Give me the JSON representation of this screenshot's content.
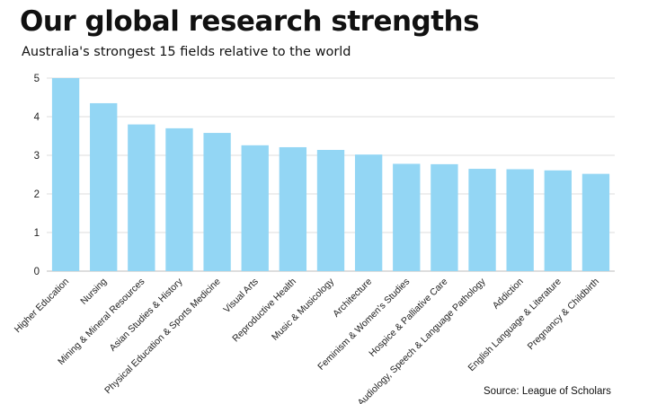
{
  "title": "Our global research strengths",
  "subtitle": "Australia's strongest 15 fields relative to the world",
  "source": "Source: League of Scholars",
  "colors": {
    "bar": "#93d6f4",
    "grid": "#dddddd",
    "axis": "#bbbbbb"
  },
  "chart_data": {
    "type": "bar",
    "title": "Our global research strengths",
    "subtitle": "Australia's strongest 15 fields relative to the world",
    "xlabel": "",
    "ylabel": "",
    "ylim": [
      0,
      5
    ],
    "yticks": [
      0,
      1,
      2,
      3,
      4,
      5
    ],
    "grid": true,
    "categories": [
      "Higher Education",
      "Nursing",
      "Mining & Mineral Resources",
      "Asian Studies & History",
      "Physical Education & Sports Medicine",
      "Visual Arts",
      "Reproductive Health",
      "Music & Musicology",
      "Architecture",
      "Feminism & Women's Studies",
      "Hospice & Palliative Care",
      "Audiology, Speech & Language Pathology",
      "Addiction",
      "English Language & Literature",
      "Pregnancy & Childbirth"
    ],
    "values": [
      5.0,
      4.35,
      3.8,
      3.7,
      3.58,
      3.26,
      3.21,
      3.14,
      3.02,
      2.78,
      2.77,
      2.65,
      2.64,
      2.61,
      2.52
    ]
  }
}
